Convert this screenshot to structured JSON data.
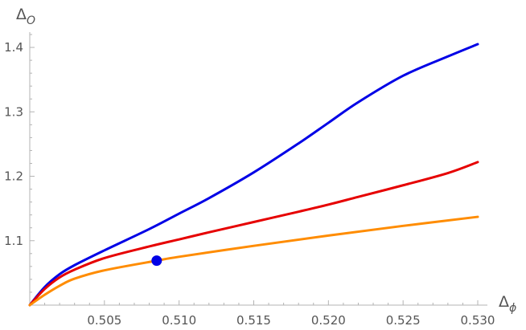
{
  "chart_data": {
    "type": "line",
    "title": "",
    "xlabel": {
      "main": "Δ",
      "sub": "ϕ"
    },
    "ylabel": {
      "main": "Δ",
      "sub": "O"
    },
    "xlim": [
      0.5,
      0.53
    ],
    "ylim": [
      1.0,
      1.42
    ],
    "x_ticks": [
      0.505,
      0.51,
      0.515,
      0.52,
      0.525,
      0.53
    ],
    "x_tick_labels": [
      "0.505",
      "0.510",
      "0.515",
      "0.520",
      "0.525",
      "0.530"
    ],
    "y_ticks": [
      1.1,
      1.2,
      1.3,
      1.4
    ],
    "y_tick_labels": [
      "1.1",
      "1.2",
      "1.3",
      "1.4"
    ],
    "grid": false,
    "legend": "none",
    "series": [
      {
        "color": "#0000e6",
        "x": [
          0.5,
          0.501,
          0.502,
          0.503,
          0.505,
          0.508,
          0.51,
          0.512,
          0.515,
          0.518,
          0.52,
          0.522,
          0.525,
          0.528,
          0.53
        ],
        "y": [
          1.0,
          1.028,
          1.048,
          1.062,
          1.085,
          1.118,
          1.142,
          1.166,
          1.206,
          1.251,
          1.283,
          1.315,
          1.356,
          1.386,
          1.405
        ]
      },
      {
        "color": "#e60000",
        "x": [
          0.5,
          0.501,
          0.502,
          0.503,
          0.505,
          0.508,
          0.51,
          0.512,
          0.515,
          0.518,
          0.52,
          0.522,
          0.525,
          0.528,
          0.53
        ],
        "y": [
          1.0,
          1.025,
          1.043,
          1.055,
          1.073,
          1.091,
          1.102,
          1.113,
          1.129,
          1.145,
          1.156,
          1.168,
          1.186,
          1.205,
          1.222
        ]
      },
      {
        "color": "#ff8c00",
        "x": [
          0.5,
          0.501,
          0.502,
          0.503,
          0.505,
          0.5085,
          0.51,
          0.515,
          0.52,
          0.525,
          0.53
        ],
        "y": [
          1.0,
          1.016,
          1.03,
          1.041,
          1.054,
          1.069,
          1.075,
          1.092,
          1.108,
          1.123,
          1.137
        ]
      }
    ],
    "points": [
      {
        "x": 0.5085,
        "y": 1.069,
        "color": "#0000e6"
      }
    ]
  }
}
